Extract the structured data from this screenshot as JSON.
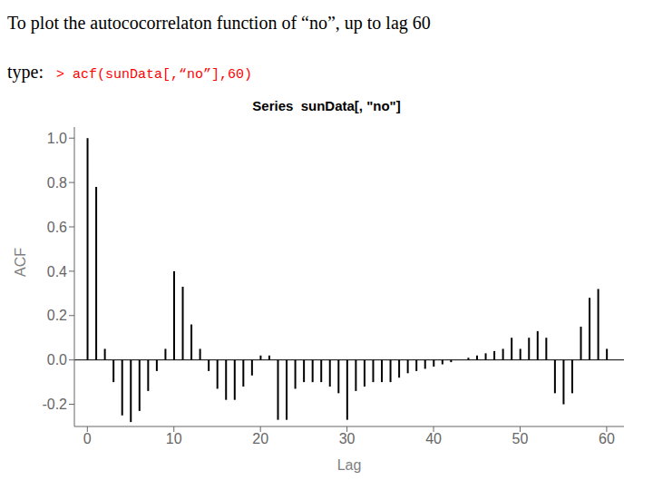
{
  "chart_data": {
    "type": "bar",
    "title": "Series  sunData[, \"no\"]",
    "xlabel": "Lag",
    "ylabel": "ACF",
    "x": [
      0,
      1,
      2,
      3,
      4,
      5,
      6,
      7,
      8,
      9,
      10,
      11,
      12,
      13,
      14,
      15,
      16,
      17,
      18,
      19,
      20,
      21,
      22,
      23,
      24,
      25,
      26,
      27,
      28,
      29,
      30,
      31,
      32,
      33,
      34,
      35,
      36,
      37,
      38,
      39,
      40,
      41,
      42,
      43,
      44,
      45,
      46,
      47,
      48,
      49,
      50,
      51,
      52,
      53,
      54,
      55,
      56,
      57,
      58,
      59,
      60
    ],
    "values": [
      1.0,
      0.78,
      0.05,
      -0.1,
      -0.25,
      -0.28,
      -0.23,
      -0.14,
      -0.05,
      0.05,
      0.4,
      0.33,
      0.16,
      0.05,
      -0.05,
      -0.13,
      -0.18,
      -0.18,
      -0.12,
      -0.07,
      0.02,
      0.02,
      -0.27,
      -0.27,
      -0.13,
      -0.1,
      -0.1,
      -0.1,
      -0.12,
      -0.15,
      -0.27,
      -0.14,
      -0.12,
      -0.1,
      -0.1,
      -0.1,
      -0.08,
      -0.06,
      -0.05,
      -0.04,
      -0.03,
      -0.02,
      -0.01,
      0.0,
      0.01,
      0.02,
      0.03,
      0.04,
      0.05,
      0.1,
      0.05,
      0.1,
      0.13,
      0.1,
      -0.15,
      -0.2,
      -0.15,
      0.15,
      0.28,
      0.32,
      0.05
    ],
    "color": "#000000",
    "xlim": [
      -1.5,
      62
    ],
    "ylim": [
      -0.3,
      1.05
    ],
    "xticks": [
      0,
      10,
      20,
      30,
      40,
      50,
      60
    ],
    "yticks": [
      -0.2,
      {
        "value": 0,
        "label": "0.0"
      },
      0.2,
      0.4,
      0.6,
      0.8,
      {
        "value": 1,
        "label": "1.0"
      }
    ],
    "grid": false,
    "annotations": [
      {
        "text": "To plot the autococorrelaton function of “no”, up to lag 60",
        "color": "#000000"
      },
      {
        "text": "type:",
        "color": "#000000"
      },
      {
        "text": "> acf(sunData[,“no”],60)",
        "color": "#ff0000"
      }
    ]
  }
}
